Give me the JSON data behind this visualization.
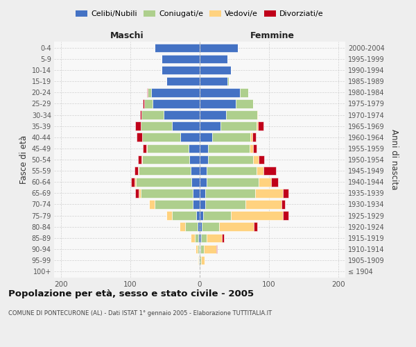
{
  "age_groups": [
    "100+",
    "95-99",
    "90-94",
    "85-89",
    "80-84",
    "75-79",
    "70-74",
    "65-69",
    "60-64",
    "55-59",
    "50-54",
    "45-49",
    "40-44",
    "35-39",
    "30-34",
    "25-29",
    "20-24",
    "15-19",
    "10-14",
    "5-9",
    "0-4"
  ],
  "birth_years": [
    "≤ 1904",
    "1905-1909",
    "1910-1914",
    "1915-1919",
    "1920-1924",
    "1925-1929",
    "1930-1934",
    "1935-1939",
    "1940-1944",
    "1945-1949",
    "1950-1954",
    "1955-1959",
    "1960-1964",
    "1965-1969",
    "1970-1974",
    "1975-1979",
    "1980-1984",
    "1985-1989",
    "1990-1994",
    "1995-1999",
    "2000-2004"
  ],
  "maschi": {
    "celibi": [
      0,
      1,
      1,
      2,
      3,
      5,
      10,
      10,
      12,
      13,
      15,
      16,
      28,
      40,
      52,
      68,
      70,
      48,
      55,
      55,
      65
    ],
    "coniugati": [
      0,
      1,
      2,
      5,
      18,
      35,
      55,
      75,
      80,
      75,
      68,
      60,
      55,
      45,
      32,
      12,
      5,
      0,
      0,
      0,
      0
    ],
    "vedovi": [
      0,
      1,
      3,
      6,
      8,
      8,
      8,
      3,
      2,
      1,
      1,
      1,
      0,
      0,
      0,
      0,
      0,
      0,
      0,
      0,
      0
    ],
    "divorziati": [
      0,
      0,
      0,
      0,
      0,
      0,
      0,
      5,
      5,
      5,
      5,
      5,
      8,
      8,
      2,
      2,
      1,
      0,
      0,
      0,
      0
    ]
  },
  "femmine": {
    "nubili": [
      0,
      0,
      1,
      2,
      3,
      5,
      8,
      8,
      10,
      10,
      12,
      12,
      18,
      30,
      38,
      52,
      58,
      40,
      45,
      40,
      55
    ],
    "coniugate": [
      0,
      2,
      5,
      8,
      25,
      40,
      58,
      72,
      75,
      72,
      65,
      60,
      55,
      52,
      45,
      25,
      12,
      2,
      0,
      0,
      0
    ],
    "vedove": [
      0,
      5,
      18,
      22,
      50,
      75,
      52,
      40,
      18,
      10,
      8,
      5,
      3,
      2,
      1,
      0,
      0,
      0,
      0,
      0,
      0
    ],
    "divorziate": [
      0,
      0,
      1,
      3,
      5,
      8,
      5,
      8,
      10,
      18,
      8,
      5,
      5,
      8,
      0,
      0,
      0,
      0,
      0,
      0,
      0
    ]
  },
  "colors": {
    "celibi_nubili": "#4472C4",
    "coniugati": "#AECF8D",
    "vedovi": "#FFD27F",
    "divorziati": "#C0001A"
  },
  "title": "Popolazione per età, sesso e stato civile - 2005",
  "subtitle": "COMUNE DI PONTECURONE (AL) - Dati ISTAT 1° gennaio 2005 - Elaborazione TUTTITALIA.IT",
  "ylabel_left": "Fasce di età",
  "ylabel_right": "Anni di nascita",
  "xlabel_left": "Maschi",
  "xlabel_right": "Femmine",
  "xlim": 210,
  "background_color": "#eeeeee",
  "plot_bg_color": "#f8f8f8"
}
